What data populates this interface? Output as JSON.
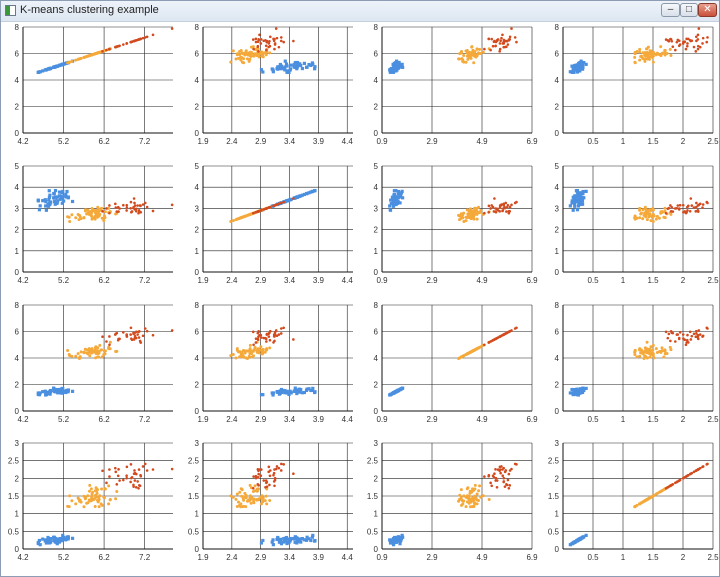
{
  "window": {
    "title": "K-means clustering example",
    "icon": "app-window-icon",
    "buttons": [
      {
        "name": "minimize-button",
        "glyph": "–"
      },
      {
        "name": "maximize-button",
        "glyph": "□"
      },
      {
        "name": "close-button",
        "glyph": "✕"
      }
    ]
  },
  "colors": {
    "cluster1": "#4a8fe0",
    "cluster2": "#f5a93a",
    "cluster3": "#d24a1e",
    "grid": "#222222"
  },
  "chart_data": {
    "type": "scatter",
    "layout": "4x4 scatter-plot matrix",
    "clusters": 3,
    "point_counts": [
      50,
      62,
      38
    ],
    "variables": [
      {
        "centers": [
          5.0,
          5.9,
          6.85
        ],
        "spreads": [
          0.35,
          0.45,
          0.5
        ],
        "xlim": [
          4.2,
          7.9
        ],
        "xticks": [
          "4.2",
          "5.2",
          "6.2",
          "7.2"
        ]
      },
      {
        "centers": [
          3.4,
          2.75,
          3.1
        ],
        "spreads": [
          0.38,
          0.3,
          0.28
        ],
        "xlim": [
          1.9,
          4.5
        ],
        "xticks": [
          "1.9",
          "2.4",
          "2.9",
          "3.4",
          "3.9",
          "4.4"
        ]
      },
      {
        "centers": [
          1.46,
          4.4,
          5.75
        ],
        "spreads": [
          0.17,
          0.5,
          0.55
        ],
        "xlim": [
          0.9,
          6.9
        ],
        "xticks": [
          "0.9",
          "2.9",
          "4.9",
          "6.9"
        ]
      },
      {
        "centers": [
          0.25,
          1.43,
          2.07
        ],
        "spreads": [
          0.1,
          0.3,
          0.28
        ],
        "xlim": [
          0,
          2.5
        ],
        "xticks": [
          "0.5",
          "1",
          "1.5",
          "2",
          "2.5"
        ]
      }
    ],
    "row_yaxes": [
      {
        "ylim": [
          0,
          8
        ],
        "yticks": [
          "0",
          "2",
          "4",
          "6",
          "8"
        ]
      },
      {
        "ylim": [
          0,
          5
        ],
        "yticks": [
          "0",
          "1",
          "2",
          "3",
          "4",
          "5"
        ]
      },
      {
        "ylim": [
          0,
          8
        ],
        "yticks": [
          "0",
          "2",
          "4",
          "6",
          "8"
        ]
      },
      {
        "ylim": [
          0,
          3
        ],
        "yticks": [
          "0",
          "0.5",
          "1",
          "1.5",
          "2",
          "2.5",
          "3"
        ]
      }
    ],
    "grid": true,
    "legend": "none"
  }
}
